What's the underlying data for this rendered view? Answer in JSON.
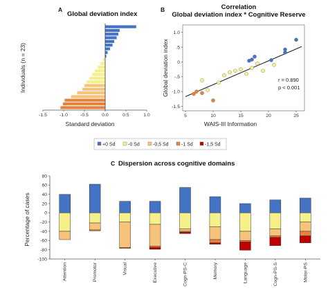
{
  "legend": {
    "items": [
      {
        "label": "+0 Sd",
        "color": "#4472c4"
      },
      {
        "label": "-0 Sd",
        "color": "#f5f08a"
      },
      {
        "label": "-0,5 Sd",
        "color": "#f7c37a"
      },
      {
        "label": "-1 Sd",
        "color": "#e8823a"
      },
      {
        "label": "-1,5 Sd",
        "color": "#c00000"
      }
    ]
  },
  "chart_data": [
    {
      "panel": "A",
      "type": "bar",
      "orientation": "horizontal",
      "title": "Global deviation index",
      "xlabel": "Standard deviation",
      "ylabel": "Individuals (n = 23)",
      "xlim": [
        -1.5,
        1.0
      ],
      "xticks": [
        "-1.5",
        "-1.0",
        "-0.5",
        "0.0",
        "0.5",
        "1.0"
      ],
      "values": [
        0.75,
        0.35,
        0.32,
        0.28,
        0.22,
        0.18,
        0.12,
        0.06,
        0.03,
        -0.05,
        -0.12,
        -0.18,
        -0.25,
        -0.32,
        -0.38,
        -0.45,
        -0.5,
        -0.55,
        -0.68,
        -0.82,
        -0.98,
        -1.02,
        -1.08
      ]
    },
    {
      "panel": "B",
      "type": "scatter",
      "title_line1": "Correlation",
      "title_line2": "Global deviation index * Cognitive Reserve",
      "xlabel": "WAIS-III Information",
      "ylabel": "Global deviation index",
      "xlim": [
        4.5,
        26.5
      ],
      "ylim": [
        -1.65,
        1.25
      ],
      "xticks": [
        5,
        10,
        15,
        20,
        25
      ],
      "yticks": [
        "1.0",
        ".5",
        "0",
        "-.5",
        "-1.0",
        "-1.5"
      ],
      "annotations": [
        "r = 0.890",
        "p < 0.001"
      ],
      "fit_line": {
        "x": [
          5,
          26
        ],
        "y": [
          -1.17,
          0.52
        ]
      },
      "points": [
        {
          "x": 25,
          "y": 0.75,
          "c": "blue"
        },
        {
          "x": 23,
          "y": 0.42,
          "c": "blue"
        },
        {
          "x": 23,
          "y": 0.32,
          "c": "blue"
        },
        {
          "x": 20.5,
          "y": 0.06,
          "c": "blue"
        },
        {
          "x": 17.5,
          "y": 0.18,
          "c": "blue"
        },
        {
          "x": 17,
          "y": 0.08,
          "c": "blue"
        },
        {
          "x": 16.5,
          "y": 0.04,
          "c": "blue"
        },
        {
          "x": 18,
          "y": -0.05,
          "c": "yellow"
        },
        {
          "x": 21,
          "y": -0.1,
          "c": "yellow"
        },
        {
          "x": 17,
          "y": -0.2,
          "c": "yellow"
        },
        {
          "x": 15,
          "y": -0.25,
          "c": "yellow"
        },
        {
          "x": 14,
          "y": -0.3,
          "c": "yellow"
        },
        {
          "x": 13,
          "y": -0.35,
          "c": "yellow"
        },
        {
          "x": 16,
          "y": -0.4,
          "c": "yellow"
        },
        {
          "x": 19,
          "y": -0.3,
          "c": "yellow"
        },
        {
          "x": 12,
          "y": -0.45,
          "c": "yellow"
        },
        {
          "x": 8,
          "y": -0.62,
          "c": "yellow"
        },
        {
          "x": 11,
          "y": -0.7,
          "c": "yellow"
        },
        {
          "x": 9,
          "y": -0.95,
          "c": "yellow"
        },
        {
          "x": 7,
          "y": -1.0,
          "c": "orange"
        },
        {
          "x": 8,
          "y": -1.05,
          "c": "orange"
        },
        {
          "x": 10,
          "y": -1.3,
          "c": "orange"
        },
        {
          "x": 6.5,
          "y": -1.08,
          "c": "orange"
        }
      ]
    },
    {
      "panel": "C",
      "type": "bar",
      "stacked": true,
      "title": "Dispersion across cognitive domains",
      "ylabel": "Percentage of cases",
      "ylim": [
        -100,
        80
      ],
      "yticks": [
        80,
        60,
        40,
        20,
        0,
        -20,
        -40,
        -60,
        -80,
        -100
      ],
      "categories": [
        "Attention",
        "Premotor",
        "Visual",
        "Executive",
        "Cogn-PS-C",
        "Memory",
        "Language",
        "Cogn-PS-S",
        "Motor-PS"
      ],
      "series": [
        {
          "name": "+0 Sd",
          "values": [
            40,
            62,
            25,
            25,
            55,
            35,
            20,
            28,
            32
          ]
        },
        {
          "name": "-0 Sd",
          "values": [
            -40,
            -22,
            -20,
            -25,
            -35,
            -30,
            -40,
            -35,
            -20
          ]
        },
        {
          "name": "-0,5 Sd",
          "values": [
            -18,
            -15,
            -55,
            -47,
            -5,
            -28,
            -20,
            -15,
            -20
          ]
        },
        {
          "name": "-1 Sd",
          "values": [
            0,
            -2,
            -2,
            -3,
            -2,
            -7,
            -3,
            -3,
            -10
          ]
        },
        {
          "name": "-1,5 Sd",
          "values": [
            0,
            0,
            0,
            -4,
            -3,
            -3,
            -18,
            -18,
            -15
          ]
        }
      ]
    }
  ]
}
